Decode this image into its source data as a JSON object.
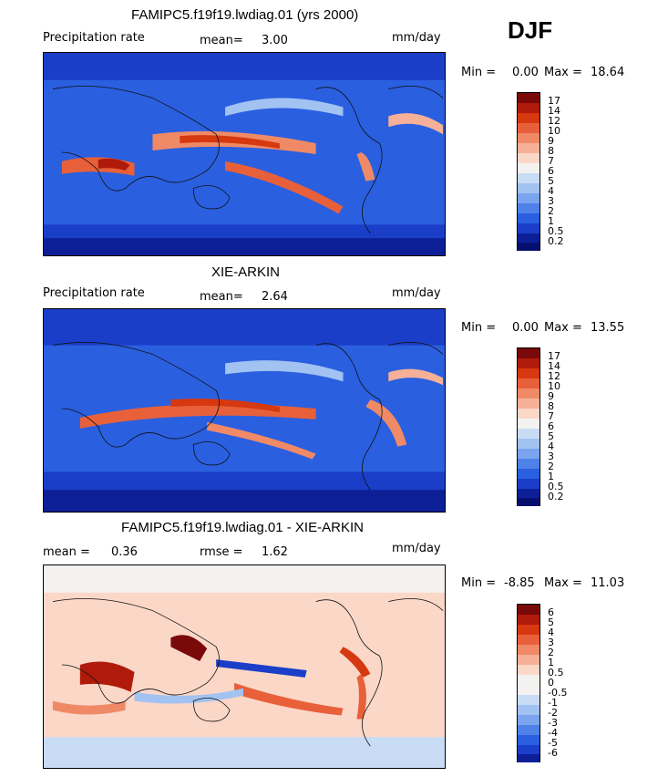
{
  "season": "DJF",
  "panels": [
    {
      "title": "FAMIPC5.f19f19.lwdiag.01 (yrs 2000)",
      "left_label": "Precipitation rate",
      "mid_label": "mean=",
      "mid_value": "3.00",
      "units": "mm/day",
      "min_label": "Min =",
      "min_value": "0.00",
      "max_label": "Max =",
      "max_value": "18.64",
      "colorbar_levels": [
        "17",
        "14",
        "12",
        "10",
        "9",
        "8",
        "7",
        "6",
        "5",
        "4",
        "3",
        "2",
        "1",
        "0.5",
        "0.2"
      ]
    },
    {
      "title": "XIE-ARKIN",
      "left_label": "Precipitation rate",
      "mid_label": "mean=",
      "mid_value": "2.64",
      "units": "mm/day",
      "min_label": "Min =",
      "min_value": "0.00",
      "max_label": "Max =",
      "max_value": "13.55",
      "colorbar_levels": [
        "17",
        "14",
        "12",
        "10",
        "9",
        "8",
        "7",
        "6",
        "5",
        "4",
        "3",
        "2",
        "1",
        "0.5",
        "0.2"
      ]
    },
    {
      "title": "FAMIPC5.f19f19.lwdiag.01 - XIE-ARKIN",
      "left_label": "mean =",
      "left_value": "0.36",
      "mid_label": "rmse =",
      "mid_value": "1.62",
      "units": "mm/day",
      "min_label": "Min =",
      "min_value": "-8.85",
      "max_label": "Max =",
      "max_value": "11.03",
      "colorbar_levels": [
        "6",
        "5",
        "4",
        "3",
        "2",
        "1",
        "0.5",
        "0",
        "-0.5",
        "-1",
        "-2",
        "-3",
        "-4",
        "-5",
        "-6"
      ]
    }
  ],
  "colors": {
    "precip_scale": [
      "#7a0a0a",
      "#b01a0a",
      "#d6380f",
      "#e8603a",
      "#f08a66",
      "#f6b098",
      "#fbd7c8",
      "#f4f2f0",
      "#c8dcf6",
      "#a2c2f2",
      "#7aa5ee",
      "#4f82e8",
      "#2a5fe0",
      "#1a3ec8",
      "#0c1f96",
      "#070f6e"
    ],
    "diff_scale": [
      "#7a0a0a",
      "#b01a0a",
      "#d6380f",
      "#e8603a",
      "#f08a66",
      "#f6b098",
      "#fbd7c8",
      "#f4f2f0",
      "#f4f2f0",
      "#c8dcf6",
      "#a2c2f2",
      "#7aa5ee",
      "#4f82e8",
      "#2a5fe0",
      "#1a3ec8",
      "#0c1f96"
    ]
  },
  "chart_data": [
    {
      "type": "heatmap",
      "title": "FAMIPC5.f19f19.lwdiag.01 (yrs 2000)",
      "variable": "Precipitation rate",
      "units": "mm/day",
      "mean": 3.0,
      "min": 0.0,
      "max": 18.64,
      "contour_levels": [
        0.2,
        0.5,
        1,
        2,
        3,
        4,
        5,
        6,
        7,
        8,
        9,
        10,
        12,
        14,
        17
      ]
    },
    {
      "type": "heatmap",
      "title": "XIE-ARKIN",
      "variable": "Precipitation rate",
      "units": "mm/day",
      "mean": 2.64,
      "min": 0.0,
      "max": 13.55,
      "contour_levels": [
        0.2,
        0.5,
        1,
        2,
        3,
        4,
        5,
        6,
        7,
        8,
        9,
        10,
        12,
        14,
        17
      ]
    },
    {
      "type": "heatmap",
      "title": "FAMIPC5.f19f19.lwdiag.01 - XIE-ARKIN",
      "units": "mm/day",
      "mean": 0.36,
      "rmse": 1.62,
      "min": -8.85,
      "max": 11.03,
      "contour_levels": [
        -6,
        -5,
        -4,
        -3,
        -2,
        -1,
        -0.5,
        0,
        0.5,
        1,
        2,
        3,
        4,
        5,
        6
      ]
    }
  ]
}
